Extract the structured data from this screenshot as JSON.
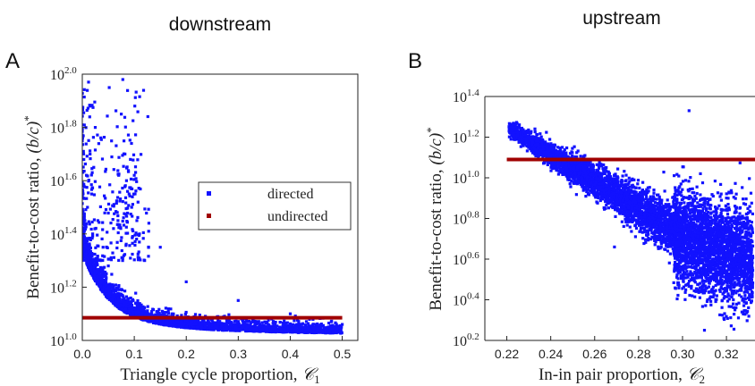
{
  "figure": {
    "panel_a_letter": "A",
    "panel_b_letter": "B",
    "panel_a_heading": "downstream",
    "panel_b_heading": "upstream"
  },
  "chart_data": [
    {
      "type": "scatter",
      "panel": "A",
      "title": "downstream",
      "xlabel": "Triangle cycle proportion, C₁",
      "ylabel": "Benefit-to-cost ratio, (b/c)*",
      "xlim": [
        0.0,
        0.53
      ],
      "ylim_log10": [
        1.0,
        2.0
      ],
      "y_scale": "log10",
      "x_ticks": [
        "0.0",
        "0.1",
        "0.2",
        "0.3",
        "0.4",
        "0.5"
      ],
      "y_ticks": [
        {
          "base": "10",
          "exp": "1.0"
        },
        {
          "base": "10",
          "exp": "1.2"
        },
        {
          "base": "10",
          "exp": "1.4"
        },
        {
          "base": "10",
          "exp": "1.6"
        },
        {
          "base": "10",
          "exp": "1.8"
        },
        {
          "base": "10",
          "exp": "2.0"
        }
      ],
      "legend": {
        "position": "right-middle",
        "entries": [
          "directed",
          "undirected"
        ]
      },
      "series": [
        {
          "name": "directed",
          "color": "#1212ff",
          "points_log10_y": [
            [
              0.003,
              1.58
            ],
            [
              0.005,
              1.45
            ],
            [
              0.008,
              1.62
            ],
            [
              0.01,
              1.5
            ],
            [
              0.012,
              1.97
            ],
            [
              0.015,
              1.88
            ],
            [
              0.015,
              1.7
            ],
            [
              0.018,
              1.55
            ],
            [
              0.02,
              1.4
            ],
            [
              0.022,
              1.65
            ],
            [
              0.025,
              1.8
            ],
            [
              0.03,
              1.45
            ],
            [
              0.035,
              1.3
            ],
            [
              0.04,
              1.35
            ],
            [
              0.05,
              1.28
            ],
            [
              0.06,
              1.42
            ],
            [
              0.07,
              1.62
            ],
            [
              0.075,
              1.85
            ],
            [
              0.078,
              1.98
            ],
            [
              0.082,
              1.7
            ],
            [
              0.085,
              1.6
            ],
            [
              0.09,
              1.55
            ],
            [
              0.095,
              1.5
            ],
            [
              0.1,
              1.62
            ],
            [
              0.105,
              1.45
            ],
            [
              0.11,
              1.4
            ],
            [
              0.12,
              1.3
            ],
            [
              0.15,
              1.35
            ],
            [
              0.2,
              1.22
            ],
            [
              0.3,
              1.15
            ],
            [
              0.4,
              1.1
            ],
            [
              0.5,
              1.06
            ]
          ]
        },
        {
          "name": "undirected",
          "color": "#a00000",
          "points_log10_y": [
            [
              0.0,
              1.085
            ],
            [
              0.5,
              1.085
            ]
          ]
        }
      ]
    },
    {
      "type": "scatter",
      "panel": "B",
      "title": "upstream",
      "xlabel": "In-in pair proportion, C₂",
      "ylabel": "Benefit-to-cost ratio, (b/c)*",
      "xlim": [
        0.21,
        0.333
      ],
      "ylim_log10": [
        0.2,
        1.4
      ],
      "y_scale": "log10",
      "x_ticks": [
        "0.22",
        "0.24",
        "0.26",
        "0.28",
        "0.30",
        "0.32"
      ],
      "y_ticks": [
        {
          "base": "10",
          "exp": "0.2"
        },
        {
          "base": "10",
          "exp": "0.4"
        },
        {
          "base": "10",
          "exp": "0.6"
        },
        {
          "base": "10",
          "exp": "0.8"
        },
        {
          "base": "10",
          "exp": "1.0"
        },
        {
          "base": "10",
          "exp": "1.2"
        },
        {
          "base": "10",
          "exp": "1.4"
        }
      ],
      "series": [
        {
          "name": "directed",
          "color": "#1212ff",
          "points_log10_y": [
            [
              0.221,
              1.25
            ],
            [
              0.225,
              1.22
            ],
            [
              0.23,
              1.18
            ],
            [
              0.24,
              1.1
            ],
            [
              0.25,
              1.03
            ],
            [
              0.26,
              0.97
            ],
            [
              0.27,
              0.9
            ],
            [
              0.28,
              0.82
            ],
            [
              0.29,
              0.75
            ],
            [
              0.3,
              0.72
            ],
            [
              0.305,
              0.7
            ],
            [
              0.31,
              0.68
            ],
            [
              0.315,
              0.66
            ],
            [
              0.32,
              0.62
            ],
            [
              0.325,
              0.55
            ],
            [
              0.303,
              1.33
            ],
            [
              0.31,
              0.25
            ],
            [
              0.269,
              0.66
            ]
          ]
        },
        {
          "name": "undirected",
          "color": "#a00000",
          "points_log10_y": [
            [
              0.22,
              1.09
            ],
            [
              0.333,
              1.09
            ]
          ]
        }
      ]
    }
  ]
}
